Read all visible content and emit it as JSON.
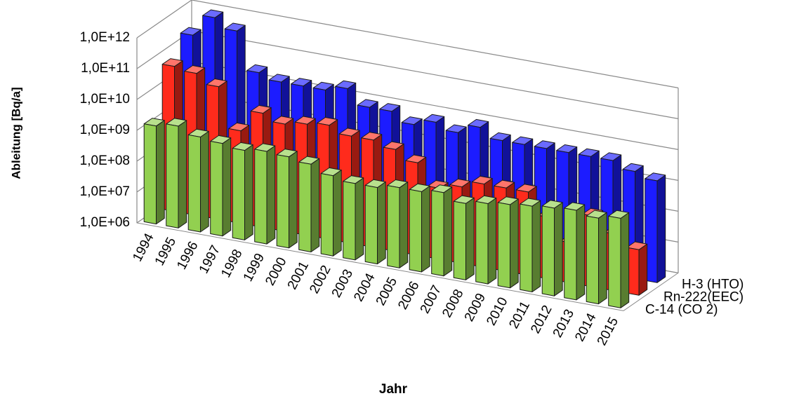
{
  "chart_data": {
    "type": "bar3d",
    "ylabel": "Ableitung [Bq/a]",
    "xlabel": "Jahr",
    "log_y": true,
    "grid": true,
    "categories": [
      "1994",
      "1995",
      "1996",
      "1997",
      "1998",
      "1999",
      "2000",
      "2001",
      "2002",
      "2003",
      "2004",
      "2005",
      "2006",
      "2007",
      "2008",
      "2009",
      "2010",
      "2011",
      "2012",
      "2013",
      "2014",
      "2015"
    ],
    "series": [
      {
        "name": "C-14 (CO 2)",
        "color": "#92d050",
        "values": [
          1500000000,
          2000000000,
          1200000000,
          1000000000,
          800000000,
          1000000000,
          900000000,
          700000000,
          400000000,
          300000000,
          300000000,
          400000000,
          400000000,
          500000000,
          300000000,
          400000000,
          500000000,
          600000000,
          700000000,
          800000000,
          600000000,
          800000000
        ]
      },
      {
        "name": "Rn-222(EEC)",
        "color": "#ff2b1c",
        "values": [
          50000000000,
          40000000000,
          20000000000,
          1000000000,
          5000000000,
          3000000000,
          4000000000,
          5000000000,
          3000000000,
          3000000000,
          2000000000,
          1000000000,
          200000000,
          300000000,
          500000000,
          500000000,
          500000000,
          100000000,
          20000000,
          200000000,
          70000000,
          30000000
        ]
      },
      {
        "name": "H-3 (HTO)",
        "color": "#1c1cff",
        "values": [
          200000000000,
          1000000000000,
          500000000000,
          30000000000,
          20000000000,
          20000000000,
          20000000000,
          30000000000,
          10000000000,
          10000000000,
          5000000000,
          8000000000,
          5000000000,
          10000000000,
          5000000000,
          5000000000,
          5000000000,
          5000000000,
          5000000000,
          5000000000,
          3000000000,
          2000000000
        ]
      }
    ],
    "ylim": [
      1000000,
      1000000000000
    ],
    "yticks": [
      {
        "value": 1000000,
        "label": "1,0E+06"
      },
      {
        "value": 10000000,
        "label": "1,0E+07"
      },
      {
        "value": 100000000,
        "label": "1,0E+08"
      },
      {
        "value": 1000000000,
        "label": "1,0E+09"
      },
      {
        "value": 10000000000,
        "label": "1,0E+10"
      },
      {
        "value": 100000000000,
        "label": "1,0E+11"
      },
      {
        "value": 1000000000000,
        "label": "1,0E+12"
      }
    ]
  }
}
